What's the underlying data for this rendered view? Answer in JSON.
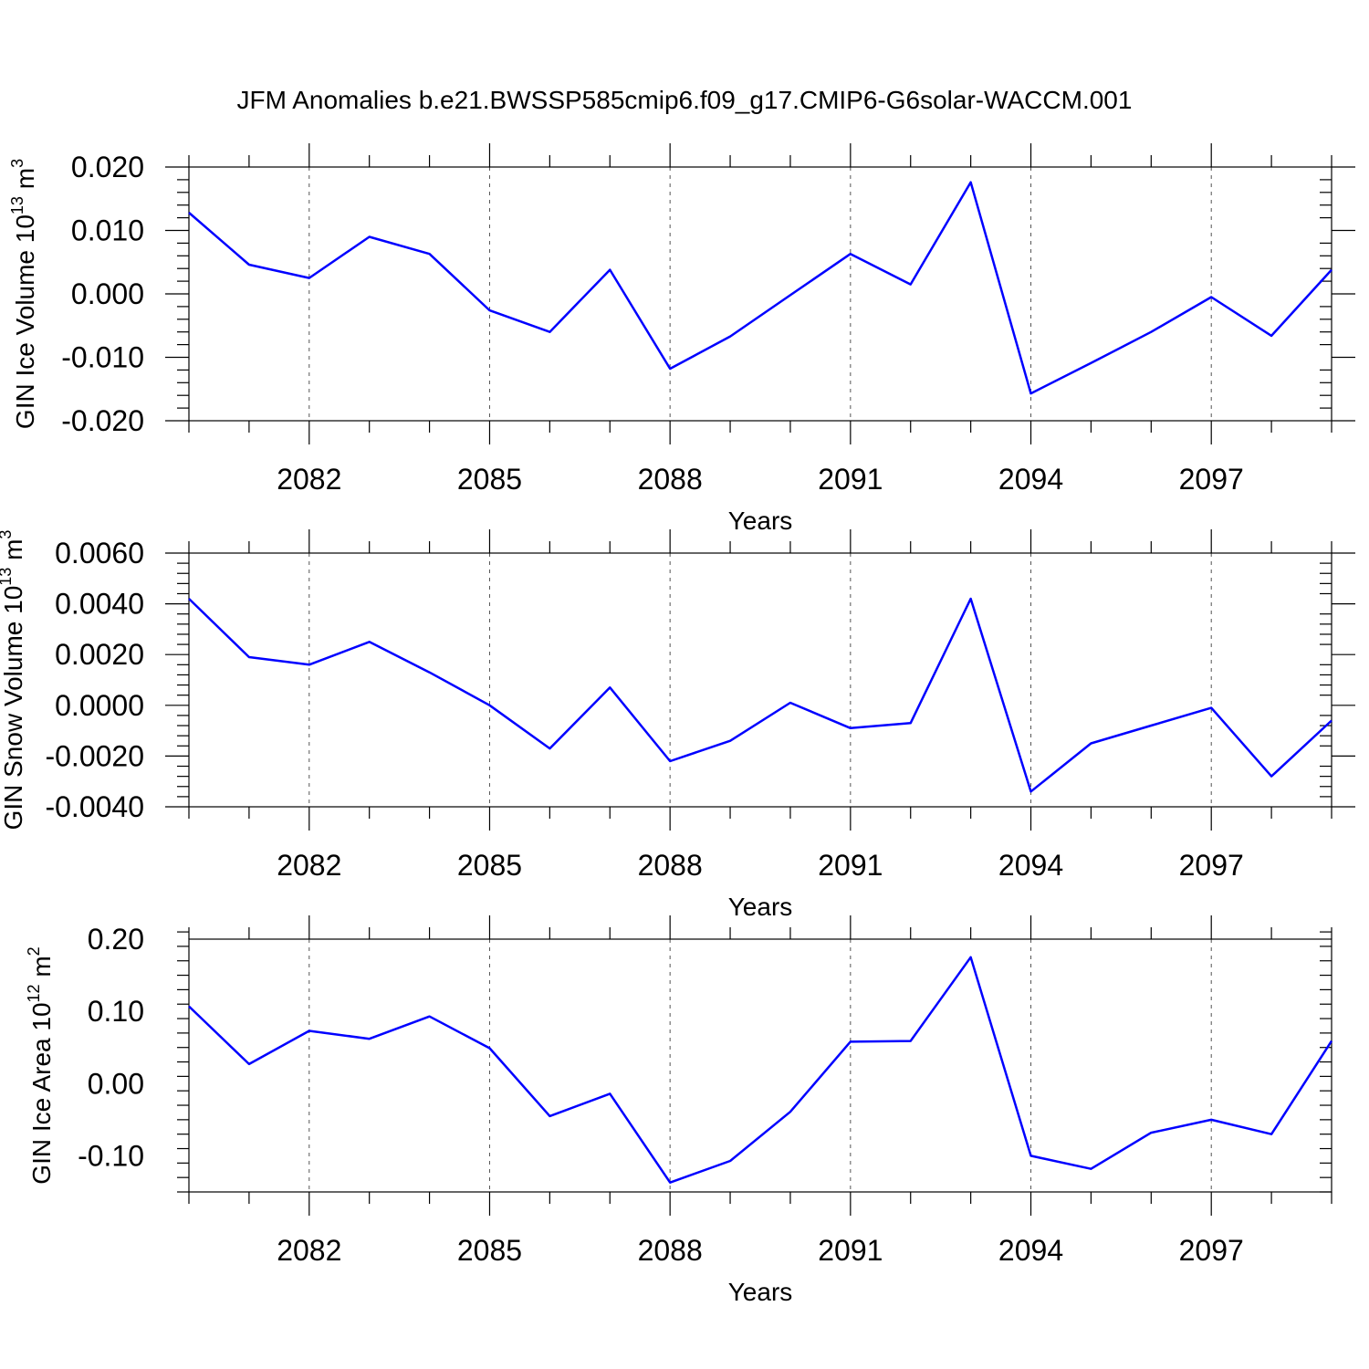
{
  "title": "JFM Anomalies b.e21.BWSSP585cmip6.f09_g17.CMIP6-G6solar-WACCM.001",
  "colors": {
    "line": "#0000ff"
  },
  "chart_data": [
    {
      "type": "line",
      "ylabel": "GIN Ice Volume 10",
      "ylabel_exp": "13",
      "ylabel_unit": " m",
      "ylabel_unit_exp": "3",
      "xlabel": "Years",
      "xlim": [
        2080,
        2099
      ],
      "ylim": [
        -0.02,
        0.02
      ],
      "yticks": [
        -0.02,
        -0.01,
        0.0,
        0.01,
        0.02
      ],
      "yticklabels": [
        "-0.020",
        "-0.010",
        "0.000",
        "0.010",
        "0.020"
      ],
      "xticks": [
        2082,
        2085,
        2088,
        2091,
        2094,
        2097
      ],
      "xticklabels": [
        "2082",
        "2085",
        "2088",
        "2091",
        "2094",
        "2097"
      ],
      "grid": "vertical dashed at major x ticks",
      "x": [
        2080,
        2081,
        2082,
        2083,
        2084,
        2085,
        2086,
        2087,
        2088,
        2089,
        2090,
        2091,
        2092,
        2093,
        2094,
        2095,
        2096,
        2097,
        2098,
        2099
      ],
      "values": [
        0.0128,
        0.0046,
        0.0025,
        0.009,
        0.0063,
        -0.0026,
        -0.006,
        0.0038,
        -0.0118,
        -0.0067,
        -0.0002,
        0.0063,
        0.0015,
        0.0176,
        -0.0157,
        -0.0109,
        -0.006,
        -0.0005,
        -0.0066,
        0.0038
      ]
    },
    {
      "type": "line",
      "ylabel": "GIN Snow Volume 10",
      "ylabel_exp": "13",
      "ylabel_unit": " m",
      "ylabel_unit_exp": "3",
      "xlabel": "Years",
      "xlim": [
        2080,
        2099
      ],
      "ylim": [
        -0.004,
        0.006
      ],
      "yticks": [
        -0.004,
        -0.002,
        0.0,
        0.002,
        0.004,
        0.006
      ],
      "yticklabels": [
        "-0.0040",
        "-0.0020",
        "0.0000",
        "0.0020",
        "0.0040",
        "0.0060"
      ],
      "xticks": [
        2082,
        2085,
        2088,
        2091,
        2094,
        2097
      ],
      "xticklabels": [
        "2082",
        "2085",
        "2088",
        "2091",
        "2094",
        "2097"
      ],
      "grid": "vertical dashed at major x ticks",
      "x": [
        2080,
        2081,
        2082,
        2083,
        2084,
        2085,
        2086,
        2087,
        2088,
        2089,
        2090,
        2091,
        2092,
        2093,
        2094,
        2095,
        2096,
        2097,
        2098,
        2099
      ],
      "values": [
        0.0042,
        0.0019,
        0.0016,
        0.0025,
        0.0013,
        0.0,
        -0.0017,
        0.0007,
        -0.0022,
        -0.0014,
        0.0001,
        -0.0009,
        -0.0007,
        0.0042,
        -0.0034,
        -0.0015,
        -0.0008,
        -0.0001,
        -0.0028,
        -0.0006
      ]
    },
    {
      "type": "line",
      "ylabel": "GIN Ice Area 10",
      "ylabel_exp": "12",
      "ylabel_unit": " m",
      "ylabel_unit_exp": "2",
      "xlabel": "Years",
      "xlim": [
        2080,
        2099
      ],
      "ylim": [
        -0.15,
        0.2
      ],
      "yticks": [
        -0.1,
        0.0,
        0.1,
        0.2
      ],
      "yticklabels": [
        "-0.10",
        "0.00",
        "0.10",
        "0.20"
      ],
      "xticks": [
        2082,
        2085,
        2088,
        2091,
        2094,
        2097
      ],
      "xticklabels": [
        "2082",
        "2085",
        "2088",
        "2091",
        "2094",
        "2097"
      ],
      "grid": "vertical dashed at major x ticks",
      "x": [
        2080,
        2081,
        2082,
        2083,
        2084,
        2085,
        2086,
        2087,
        2088,
        2089,
        2090,
        2091,
        2092,
        2093,
        2094,
        2095,
        2096,
        2097,
        2098,
        2099
      ],
      "values": [
        0.107,
        0.027,
        0.073,
        0.062,
        0.093,
        0.049,
        -0.045,
        -0.014,
        -0.137,
        -0.107,
        -0.039,
        0.058,
        0.059,
        0.175,
        -0.1,
        -0.118,
        -0.068,
        -0.05,
        -0.07,
        0.059
      ]
    }
  ]
}
